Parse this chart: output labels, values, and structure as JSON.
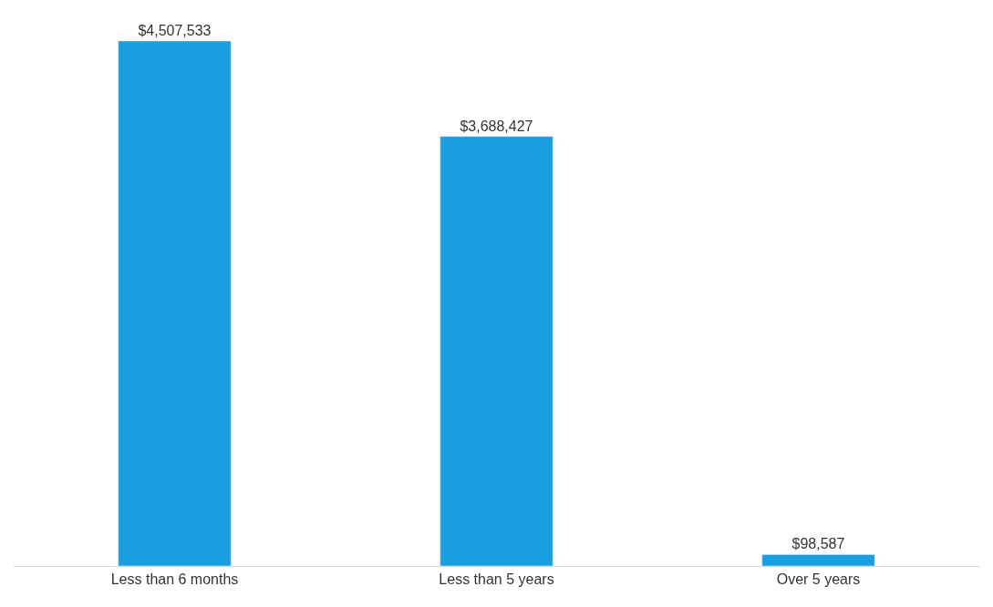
{
  "chart_data": {
    "type": "bar",
    "categories": [
      "Less than 6 months",
      "Less than 5 years",
      "Over 5 years"
    ],
    "values": [
      4507533,
      3688427,
      98587
    ],
    "value_labels": [
      "$4,507,533",
      "$3,688,427",
      "$98,587"
    ],
    "color": "#1b9de2"
  }
}
